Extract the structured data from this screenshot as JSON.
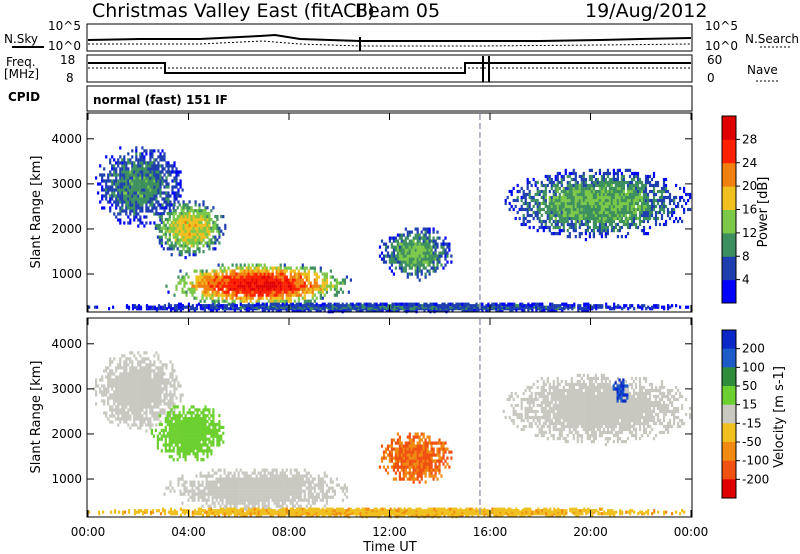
{
  "header": {
    "title": "Christmas Valley East (fitACF)",
    "beam": "Beam 05",
    "date": "19/Aug/2012"
  },
  "summary": {
    "nsky_label": "N.Sky",
    "nsky_ticks": [
      "10^5",
      "10^0"
    ],
    "nsearch_label": "N.Search",
    "nsearch_ticks": [
      "10^5",
      "10^0"
    ],
    "freq_label_1": "Freq.",
    "freq_label_2": "[MHz]",
    "freq_ticks": [
      "18",
      "8"
    ],
    "nave_label": "Nave",
    "nave_ticks": [
      "60",
      "0"
    ],
    "cpid_label": "CPID",
    "cpid_text": "normal (fast) 151 IF"
  },
  "chart_data": [
    {
      "type": "heatmap",
      "name": "power",
      "ylabel": "Slant Range [km]",
      "xlabel": "Time UT",
      "x_ticks": [
        "00:00",
        "04:00",
        "08:00",
        "12:00",
        "16:00",
        "20:00",
        "00:00"
      ],
      "x_range_hours": [
        0,
        24
      ],
      "ylim_km": [
        180,
        4550
      ],
      "y_ticks": [
        "1000",
        "2000",
        "3000",
        "4000"
      ],
      "colorbar": {
        "label": "Power [dB]",
        "ticks": [
          "4",
          "8",
          "12",
          "16",
          "20",
          "24",
          "28"
        ],
        "colors": [
          "#0000ff",
          "#1f3fb0",
          "#3d8f5f",
          "#7cc848",
          "#f0c020",
          "#f08010",
          "#ff2000",
          "#e00000"
        ]
      },
      "echo_regions": [
        {
          "t0": 0.2,
          "t1": 3.8,
          "r0": 2100,
          "r1": 3900,
          "power_db": 8
        },
        {
          "t0": 2.5,
          "t1": 5.5,
          "r0": 1400,
          "r1": 2700,
          "power_db": 14
        },
        {
          "t0": 3.0,
          "t1": 10.5,
          "r0": 300,
          "r1": 1300,
          "power_db": 22
        },
        {
          "t0": 11.5,
          "t1": 14.5,
          "r0": 900,
          "r1": 2100,
          "power_db": 10
        },
        {
          "t0": 16.5,
          "t1": 24.0,
          "r0": 1800,
          "r1": 3400,
          "power_db": 10
        },
        {
          "t0": 0.0,
          "t1": 24.0,
          "r0": 200,
          "r1": 400,
          "power_db": 6
        }
      ]
    },
    {
      "type": "heatmap",
      "name": "velocity",
      "ylabel": "Slant Range [km]",
      "xlabel": "Time UT",
      "x_ticks": [
        "00:00",
        "04:00",
        "08:00",
        "12:00",
        "16:00",
        "20:00",
        "00:00"
      ],
      "x_range_hours": [
        0,
        24
      ],
      "ylim_km": [
        180,
        4550
      ],
      "y_ticks": [
        "1000",
        "2000",
        "3000",
        "4000"
      ],
      "colorbar": {
        "label": "Velocity [m s-1]",
        "ticks": [
          "200",
          "100",
          "50",
          "15",
          "-15",
          "-50",
          "-100",
          "-200"
        ],
        "colors": [
          "#0a28c8",
          "#1c5cc8",
          "#2e8c3c",
          "#6cd030",
          "#c8c8c0",
          "#f0c020",
          "#f08a10",
          "#f05010",
          "#e00000"
        ]
      },
      "echo_regions": [
        {
          "t0": 0.2,
          "t1": 3.8,
          "r0": 2100,
          "r1": 3900,
          "velocity": 0
        },
        {
          "t0": 2.5,
          "t1": 5.5,
          "r0": 1400,
          "r1": 2700,
          "velocity": 30
        },
        {
          "t0": 3.0,
          "t1": 10.5,
          "r0": 300,
          "r1": 1300,
          "velocity": 0
        },
        {
          "t0": 11.5,
          "t1": 14.5,
          "r0": 900,
          "r1": 2100,
          "velocity": -100
        },
        {
          "t0": 16.5,
          "t1": 24.0,
          "r0": 1800,
          "r1": 3400,
          "velocity": 0
        },
        {
          "t0": 20.8,
          "t1": 21.5,
          "r0": 2700,
          "r1": 3300,
          "velocity": 200
        },
        {
          "t0": 0.0,
          "t1": 24.0,
          "r0": 200,
          "r1": 400,
          "velocity": -40
        }
      ]
    }
  ]
}
